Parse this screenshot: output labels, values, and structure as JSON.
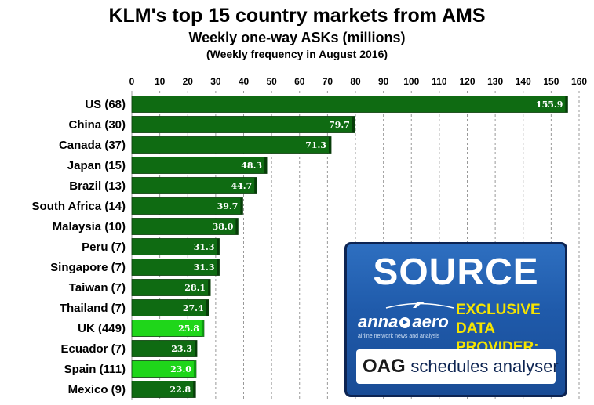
{
  "header": {
    "title": "KLM's top 15 country markets from AMS",
    "subtitle": "Weekly one-way ASKs (millions)",
    "note": "(Weekly frequency in August 2016)"
  },
  "source_box": {
    "heading": "SOURCE",
    "logo_text_a": "anna",
    "logo_text_b": "aero",
    "logo_tagline": "airline network news and analysis",
    "exclusive_line1": "EXCLUSIVE",
    "exclusive_line2": "DATA PROVIDER:",
    "oag_brand": "OAG",
    "oag_product": "schedules analyser",
    "colors": {
      "box": "#1f5aaa",
      "accent_text": "#f5e400"
    }
  },
  "chart_data": {
    "type": "bar",
    "orientation": "horizontal",
    "title": "KLM's top 15 country markets from AMS",
    "subtitle": "Weekly one-way ASKs (millions)",
    "xlim": [
      0,
      160
    ],
    "xticks": [
      0,
      10,
      20,
      30,
      40,
      50,
      60,
      70,
      80,
      90,
      100,
      110,
      120,
      130,
      140,
      150,
      160
    ],
    "grid": "vertical dashed",
    "categories": [
      "US (68)",
      "China (30)",
      "Canada (37)",
      "Japan (15)",
      "Brazil (13)",
      "South Africa (14)",
      "Malaysia (10)",
      "Peru (7)",
      "Singapore (7)",
      "Taiwan (7)",
      "Thailand (7)",
      "UK (449)",
      "Ecuador (7)",
      "Spain (111)",
      "Mexico (9)"
    ],
    "values": [
      155.9,
      79.7,
      71.3,
      48.3,
      44.7,
      39.7,
      38.0,
      31.3,
      31.3,
      28.1,
      27.4,
      25.8,
      23.3,
      23.0,
      22.8
    ],
    "value_labels": [
      "155.9",
      "79.7",
      "71.3",
      "48.3",
      "44.7",
      "39.7",
      "38.0",
      "31.3",
      "31.3",
      "28.1",
      "27.4",
      "25.8",
      "23.3",
      "23.0",
      "22.8"
    ],
    "highlighted": [
      false,
      false,
      false,
      false,
      false,
      false,
      false,
      false,
      false,
      false,
      false,
      true,
      false,
      true,
      false
    ],
    "colors": {
      "bar": "#0f6b12",
      "bar_highlight": "#1fd61a",
      "grid": "#999999"
    }
  }
}
